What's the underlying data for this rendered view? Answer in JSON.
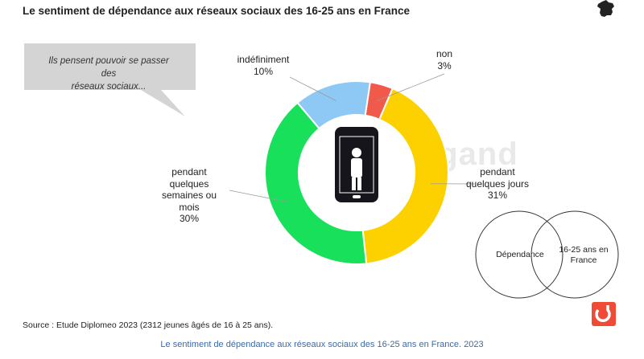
{
  "header": {
    "title": "Le sentiment de dépendance aux réseaux sociaux des 16-25 ans en France"
  },
  "bubble": {
    "line1": "Ils pensent pouvoir se passer des",
    "line2": "réseaux  sociaux..."
  },
  "chart_data": {
    "type": "pie",
    "donut": true,
    "title": "Le sentiment de dépendance aux réseaux sociaux des 16-25 ans en France",
    "categories": [
      "non",
      "pendant quelques jours",
      "pendant quelques semaines ou mois",
      "indéfiniment"
    ],
    "values": [
      3,
      31,
      30,
      10
    ],
    "unit": "%",
    "labels": [
      {
        "category": "non",
        "text": [
          "non"
        ],
        "value": "3%"
      },
      {
        "category": "pendant quelques jours",
        "text": [
          "pendant",
          "quelques jours"
        ],
        "value": "31%"
      },
      {
        "category": "pendant quelques semaines ou mois",
        "text": [
          "pendant",
          "quelques",
          "semaines ou",
          "mois"
        ],
        "value": "30%"
      },
      {
        "category": "indéfiniment",
        "text": [
          "indéfiniment"
        ],
        "value": "10%"
      }
    ],
    "colors": [
      "#f15a4a",
      "#fdd000",
      "#19e05a",
      "#8ec9f6"
    ]
  },
  "venn": {
    "left": "Dépendance",
    "right_line1": "16-25 ans en",
    "right_line2": "France"
  },
  "source": "Source : Etude Diplomeo 2023  (2312  jeunes âgés de 16 à 25 ans).",
  "footer": "Le sentiment de dépendance aux réseaux sociaux des 16-25 ans en France. 2023",
  "colors": {
    "footer": "#3b6aa8",
    "logo": "#ef4b37",
    "bubble": "#d4d4d4"
  }
}
